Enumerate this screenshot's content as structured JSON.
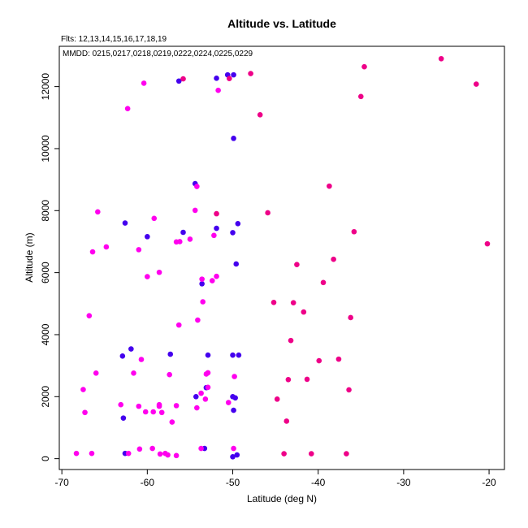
{
  "chart_data": {
    "type": "scatter",
    "title": "Altitude vs. Latitude",
    "annotations": {
      "flights": "Flts: 12,13,14,15,16,17,18,19",
      "dates": "MMDD: 0215,0217,0218,0219,0222,0224,0225,0229"
    },
    "xlabel": "Latitude (deg N)",
    "ylabel": "Altitude (m)",
    "xlim": [
      -70.3,
      -18.2
    ],
    "ylim": [
      -350,
      13300
    ],
    "xticks": [
      -70,
      -60,
      -50,
      -40,
      -30,
      -20
    ],
    "yticks": [
      0,
      2000,
      4000,
      6000,
      8000,
      10000,
      12000
    ],
    "grid": false,
    "colors": {
      "blue": "#4400ee",
      "magenta": "#ff00ee",
      "crimson": "#ee0088"
    },
    "series": [
      {
        "color": "blue",
        "points": [
          [
            -56.3,
            12180
          ],
          [
            -51.9,
            12270
          ],
          [
            -50.6,
            12380
          ],
          [
            -49.9,
            12380
          ],
          [
            -49.9,
            10330
          ],
          [
            -54.4,
            8870
          ],
          [
            -62.6,
            7600
          ],
          [
            -60.0,
            7160
          ],
          [
            -55.8,
            7300
          ],
          [
            -51.9,
            7430
          ],
          [
            -50.0,
            7290
          ],
          [
            -49.4,
            7580
          ],
          [
            -49.6,
            6280
          ],
          [
            -53.6,
            5640
          ],
          [
            -61.9,
            3540
          ],
          [
            -62.9,
            3310
          ],
          [
            -57.3,
            3370
          ],
          [
            -52.9,
            3340
          ],
          [
            -50.0,
            3340
          ],
          [
            -49.3,
            3340
          ],
          [
            -54.3,
            2000
          ],
          [
            -53.1,
            2290
          ],
          [
            -50.0,
            2000
          ],
          [
            -49.7,
            1960
          ],
          [
            -49.9,
            1560
          ],
          [
            -62.8,
            1310
          ],
          [
            -62.6,
            170
          ],
          [
            -53.3,
            330
          ],
          [
            -50.0,
            60
          ],
          [
            -49.5,
            120
          ]
        ]
      },
      {
        "color": "magenta",
        "points": [
          [
            -60.4,
            12110
          ],
          [
            -51.7,
            11880
          ],
          [
            -62.3,
            11290
          ],
          [
            -54.2,
            8780
          ],
          [
            -65.8,
            7960
          ],
          [
            -54.4,
            8010
          ],
          [
            -59.2,
            7750
          ],
          [
            -64.8,
            6830
          ],
          [
            -66.4,
            6670
          ],
          [
            -61.0,
            6740
          ],
          [
            -56.6,
            6990
          ],
          [
            -56.2,
            7000
          ],
          [
            -55.0,
            7080
          ],
          [
            -52.2,
            7200
          ],
          [
            -60.0,
            5870
          ],
          [
            -58.6,
            6010
          ],
          [
            -53.6,
            5790
          ],
          [
            -52.4,
            5740
          ],
          [
            -51.9,
            5880
          ],
          [
            -66.8,
            4610
          ],
          [
            -53.5,
            5060
          ],
          [
            -56.3,
            4310
          ],
          [
            -54.1,
            4470
          ],
          [
            -60.7,
            3200
          ],
          [
            -61.6,
            2760
          ],
          [
            -66.0,
            2760
          ],
          [
            -57.4,
            2710
          ],
          [
            -53.1,
            2730
          ],
          [
            -52.9,
            2770
          ],
          [
            -49.8,
            2650
          ],
          [
            -67.5,
            2230
          ],
          [
            -63.1,
            1740
          ],
          [
            -61.0,
            1690
          ],
          [
            -58.6,
            1690
          ],
          [
            -56.6,
            1710
          ],
          [
            -58.6,
            1740
          ],
          [
            -53.7,
            2110
          ],
          [
            -53.2,
            1920
          ],
          [
            -52.9,
            2300
          ],
          [
            -50.5,
            1810
          ],
          [
            -54.2,
            1640
          ],
          [
            -60.2,
            1510
          ],
          [
            -59.3,
            1510
          ],
          [
            -58.3,
            1490
          ],
          [
            -57.1,
            1180
          ],
          [
            -67.3,
            1490
          ],
          [
            -68.3,
            170
          ],
          [
            -66.5,
            170
          ],
          [
            -62.2,
            170
          ],
          [
            -60.9,
            310
          ],
          [
            -59.4,
            330
          ],
          [
            -58.5,
            150
          ],
          [
            -57.9,
            170
          ],
          [
            -57.6,
            120
          ],
          [
            -56.6,
            100
          ],
          [
            -53.7,
            330
          ],
          [
            -49.9,
            330
          ]
        ]
      },
      {
        "color": "crimson",
        "points": [
          [
            -55.8,
            12250
          ],
          [
            -50.4,
            12260
          ],
          [
            -47.9,
            12420
          ],
          [
            -34.6,
            12640
          ],
          [
            -25.6,
            12900
          ],
          [
            -21.5,
            12080
          ],
          [
            -35.0,
            11680
          ],
          [
            -46.8,
            11090
          ],
          [
            -38.7,
            8790
          ],
          [
            -51.9,
            7900
          ],
          [
            -45.9,
            7930
          ],
          [
            -35.8,
            7320
          ],
          [
            -20.2,
            6930
          ],
          [
            -38.2,
            6430
          ],
          [
            -42.5,
            6260
          ],
          [
            -39.4,
            5680
          ],
          [
            -45.2,
            5040
          ],
          [
            -42.9,
            5030
          ],
          [
            -41.7,
            4730
          ],
          [
            -36.2,
            4550
          ],
          [
            -43.2,
            3810
          ],
          [
            -37.6,
            3210
          ],
          [
            -39.9,
            3160
          ],
          [
            -43.5,
            2550
          ],
          [
            -41.3,
            2560
          ],
          [
            -36.4,
            2220
          ],
          [
            -44.8,
            1920
          ],
          [
            -43.7,
            1210
          ],
          [
            -44.0,
            160
          ],
          [
            -40.8,
            160
          ],
          [
            -36.7,
            160
          ]
        ]
      }
    ]
  }
}
